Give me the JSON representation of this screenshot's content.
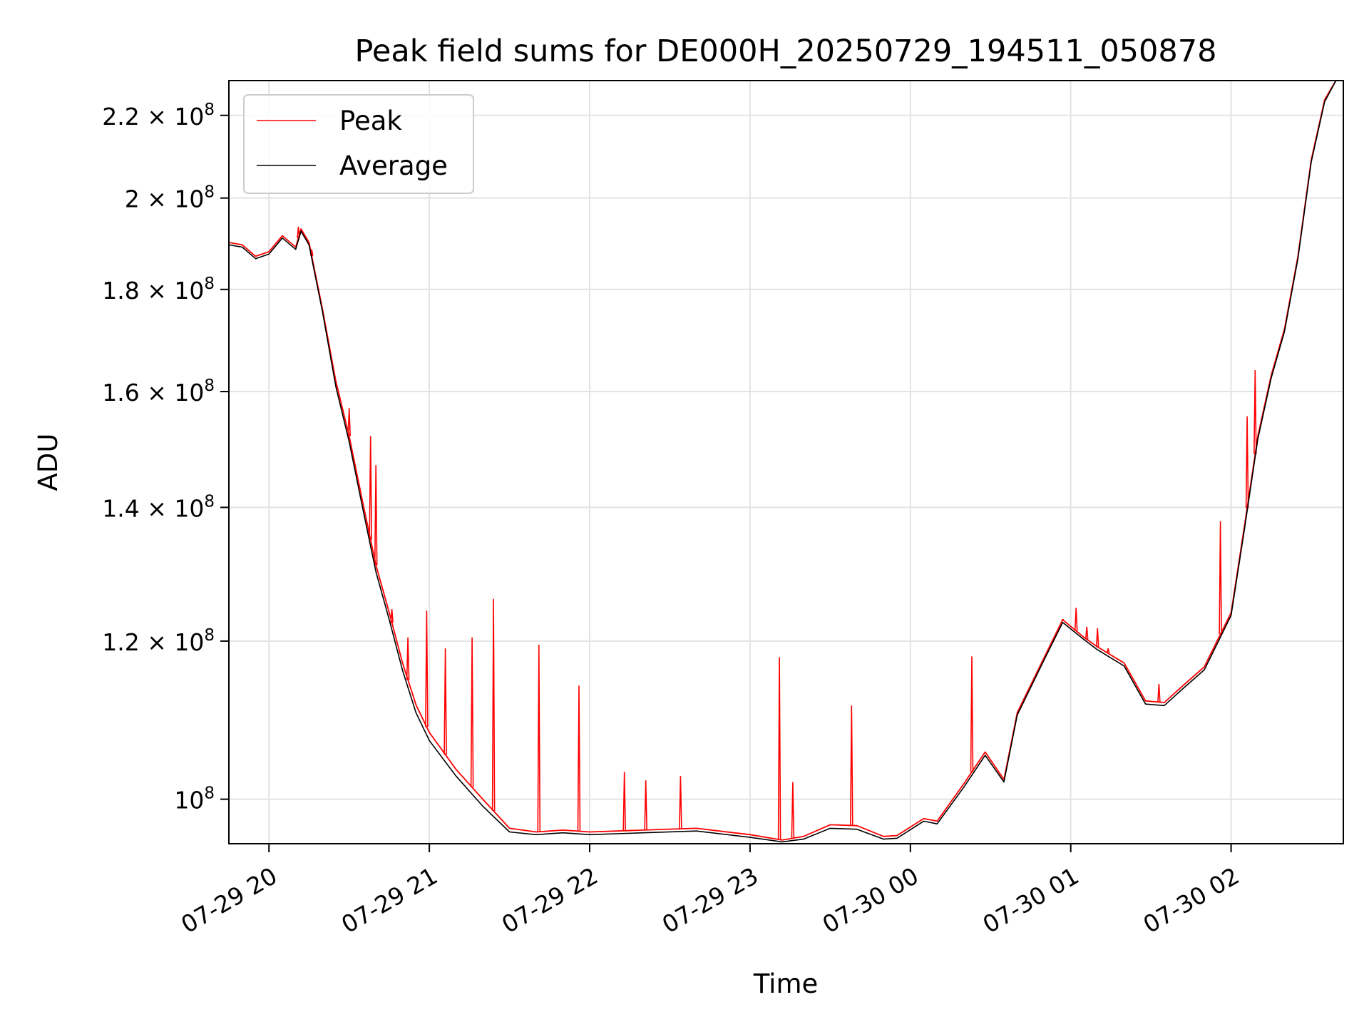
{
  "chart_data": {
    "type": "line",
    "title": "Peak field sums for DE000H_20250729_194511_050878",
    "xlabel": "Time",
    "ylabel": "ADU",
    "yscale": "log",
    "grid": true,
    "legend_position": "top-left",
    "xlim": [
      "2025-07-29 19:45",
      "2025-07-30 02:42"
    ],
    "ylim": [
      95000000,
      229000000
    ],
    "x_ticks": [
      {
        "value": "2025-07-29 20:00",
        "label": "07-29 20"
      },
      {
        "value": "2025-07-29 21:00",
        "label": "07-29 21"
      },
      {
        "value": "2025-07-29 22:00",
        "label": "07-29 22"
      },
      {
        "value": "2025-07-29 23:00",
        "label": "07-29 23"
      },
      {
        "value": "2025-07-30 00:00",
        "label": "07-30 00"
      },
      {
        "value": "2025-07-30 01:00",
        "label": "07-30 01"
      },
      {
        "value": "2025-07-30 02:00",
        "label": "07-30 02"
      }
    ],
    "y_ticks": [
      {
        "value": 100000000,
        "mantissa": "",
        "exp": "8"
      },
      {
        "value": 120000000,
        "mantissa": "1.2",
        "exp": "8"
      },
      {
        "value": 140000000,
        "mantissa": "1.4",
        "exp": "8"
      },
      {
        "value": 160000000,
        "mantissa": "1.6",
        "exp": "8"
      },
      {
        "value": 180000000,
        "mantissa": "1.8",
        "exp": "8"
      },
      {
        "value": 200000000,
        "mantissa": "2",
        "exp": "8"
      },
      {
        "value": 220000000,
        "mantissa": "2.2",
        "exp": "8"
      }
    ],
    "series": [
      {
        "name": "Peak",
        "color": "#ff0000",
        "x": [
          "2025-07-29 19:45",
          "2025-07-29 19:50",
          "2025-07-29 19:55",
          "2025-07-29 20:00",
          "2025-07-29 20:05",
          "2025-07-29 20:10",
          "2025-07-29 20:12",
          "2025-07-29 20:15",
          "2025-07-29 20:20",
          "2025-07-29 20:25",
          "2025-07-29 20:30",
          "2025-07-29 20:35",
          "2025-07-29 20:40",
          "2025-07-29 20:45",
          "2025-07-29 20:50",
          "2025-07-29 20:55",
          "2025-07-29 21:00",
          "2025-07-29 21:10",
          "2025-07-29 21:20",
          "2025-07-29 21:30",
          "2025-07-29 21:40",
          "2025-07-29 21:50",
          "2025-07-29 22:00",
          "2025-07-29 22:20",
          "2025-07-29 22:40",
          "2025-07-29 23:00",
          "2025-07-29 23:12",
          "2025-07-29 23:20",
          "2025-07-29 23:30",
          "2025-07-29 23:40",
          "2025-07-29 23:50",
          "2025-07-29 23:55",
          "2025-07-30 00:05",
          "2025-07-30 00:10",
          "2025-07-30 00:20",
          "2025-07-30 00:28",
          "2025-07-30 00:35",
          "2025-07-30 00:40",
          "2025-07-30 00:50",
          "2025-07-30 00:57",
          "2025-07-30 01:05",
          "2025-07-30 01:10",
          "2025-07-30 01:20",
          "2025-07-30 01:28",
          "2025-07-30 01:35",
          "2025-07-30 01:42",
          "2025-07-30 01:50",
          "2025-07-30 02:00",
          "2025-07-30 02:05",
          "2025-07-30 02:10",
          "2025-07-30 02:15",
          "2025-07-30 02:20",
          "2025-07-30 02:25",
          "2025-07-30 02:30",
          "2025-07-30 02:35",
          "2025-07-30 02:40"
        ],
        "y": [
          190000000,
          189500000,
          187000000,
          188000000,
          191500000,
          189000000,
          193000000,
          190000000,
          176000000,
          162000000,
          152000000,
          141000000,
          131000000,
          124000000,
          117000000,
          111500000,
          108000000,
          103500000,
          100000000,
          96700000,
          96300000,
          96500000,
          96300000,
          96500000,
          96700000,
          96000000,
          95400000,
          95800000,
          97100000,
          97000000,
          95800000,
          95900000,
          97800000,
          97500000,
          101800000,
          105600000,
          102300000,
          110500000,
          117700000,
          123000000,
          120500000,
          119200000,
          117000000,
          112000000,
          111800000,
          114000000,
          116500000,
          124000000,
          137000000,
          152000000,
          163000000,
          172000000,
          187000000,
          209000000,
          224000000,
          230000000
        ],
        "spikes": [
          {
            "x": "2025-07-29 20:11",
            "y": 193500000
          },
          {
            "x": "2025-07-29 20:16",
            "y": 188500000
          },
          {
            "x": "2025-07-29 20:30",
            "y": 157000000
          },
          {
            "x": "2025-07-29 20:38",
            "y": 152000000
          },
          {
            "x": "2025-07-29 20:40",
            "y": 147000000
          },
          {
            "x": "2025-07-29 20:46",
            "y": 124500000
          },
          {
            "x": "2025-07-29 20:52",
            "y": 120500000
          },
          {
            "x": "2025-07-29 20:59",
            "y": 124300000
          },
          {
            "x": "2025-07-29 21:06",
            "y": 119000000
          },
          {
            "x": "2025-07-29 21:16",
            "y": 120500000
          },
          {
            "x": "2025-07-29 21:24",
            "y": 126000000
          },
          {
            "x": "2025-07-29 21:41",
            "y": 119500000
          },
          {
            "x": "2025-07-29 21:56",
            "y": 114000000
          },
          {
            "x": "2025-07-29 22:13",
            "y": 103200000
          },
          {
            "x": "2025-07-29 22:21",
            "y": 102200000
          },
          {
            "x": "2025-07-29 22:34",
            "y": 102700000
          },
          {
            "x": "2025-07-29 23:11",
            "y": 117800000
          },
          {
            "x": "2025-07-29 23:16",
            "y": 102000000
          },
          {
            "x": "2025-07-29 23:38",
            "y": 111400000
          },
          {
            "x": "2025-07-30 00:23",
            "y": 117900000
          },
          {
            "x": "2025-07-30 00:57",
            "y": 123000000
          },
          {
            "x": "2025-07-30 01:02",
            "y": 124700000
          },
          {
            "x": "2025-07-30 01:06",
            "y": 122000000
          },
          {
            "x": "2025-07-30 01:10",
            "y": 121800000
          },
          {
            "x": "2025-07-30 01:14",
            "y": 119000000
          },
          {
            "x": "2025-07-30 01:33",
            "y": 114200000
          },
          {
            "x": "2025-07-30 01:56",
            "y": 137800000
          },
          {
            "x": "2025-07-30 02:06",
            "y": 155500000
          },
          {
            "x": "2025-07-30 02:09",
            "y": 164000000
          }
        ]
      },
      {
        "name": "Average",
        "color": "#000000",
        "x": [
          "2025-07-29 19:45",
          "2025-07-29 19:50",
          "2025-07-29 19:55",
          "2025-07-29 20:00",
          "2025-07-29 20:05",
          "2025-07-29 20:10",
          "2025-07-29 20:12",
          "2025-07-29 20:15",
          "2025-07-29 20:20",
          "2025-07-29 20:25",
          "2025-07-29 20:30",
          "2025-07-29 20:35",
          "2025-07-29 20:40",
          "2025-07-29 20:45",
          "2025-07-29 20:50",
          "2025-07-29 20:55",
          "2025-07-29 21:00",
          "2025-07-29 21:10",
          "2025-07-29 21:20",
          "2025-07-29 21:30",
          "2025-07-29 21:40",
          "2025-07-29 21:50",
          "2025-07-29 22:00",
          "2025-07-29 22:20",
          "2025-07-29 22:40",
          "2025-07-29 23:00",
          "2025-07-29 23:12",
          "2025-07-29 23:20",
          "2025-07-29 23:30",
          "2025-07-29 23:40",
          "2025-07-29 23:50",
          "2025-07-29 23:55",
          "2025-07-30 00:05",
          "2025-07-30 00:10",
          "2025-07-30 00:20",
          "2025-07-30 00:28",
          "2025-07-30 00:35",
          "2025-07-30 00:40",
          "2025-07-30 00:50",
          "2025-07-30 00:57",
          "2025-07-30 01:05",
          "2025-07-30 01:10",
          "2025-07-30 01:20",
          "2025-07-30 01:28",
          "2025-07-30 01:35",
          "2025-07-30 01:42",
          "2025-07-30 01:50",
          "2025-07-30 02:00",
          "2025-07-30 02:05",
          "2025-07-30 02:10",
          "2025-07-30 02:15",
          "2025-07-30 02:20",
          "2025-07-30 02:25",
          "2025-07-30 02:30",
          "2025-07-30 02:35",
          "2025-07-30 02:40"
        ],
        "y": [
          189500000,
          189000000,
          186500000,
          187500000,
          191000000,
          188500000,
          192500000,
          189500000,
          175500000,
          161000000,
          151000000,
          140000000,
          130000000,
          123000000,
          116000000,
          110500000,
          107000000,
          102700000,
          99200000,
          96300000,
          96000000,
          96200000,
          96000000,
          96200000,
          96400000,
          95700000,
          95200000,
          95500000,
          96700000,
          96600000,
          95500000,
          95600000,
          97500000,
          97200000,
          101400000,
          105200000,
          102000000,
          110200000,
          117400000,
          122600000,
          120200000,
          118800000,
          116600000,
          111600000,
          111400000,
          113600000,
          116100000,
          123600000,
          136500000,
          151500000,
          162500000,
          171500000,
          186500000,
          208500000,
          223500000,
          230000000
        ]
      }
    ]
  }
}
